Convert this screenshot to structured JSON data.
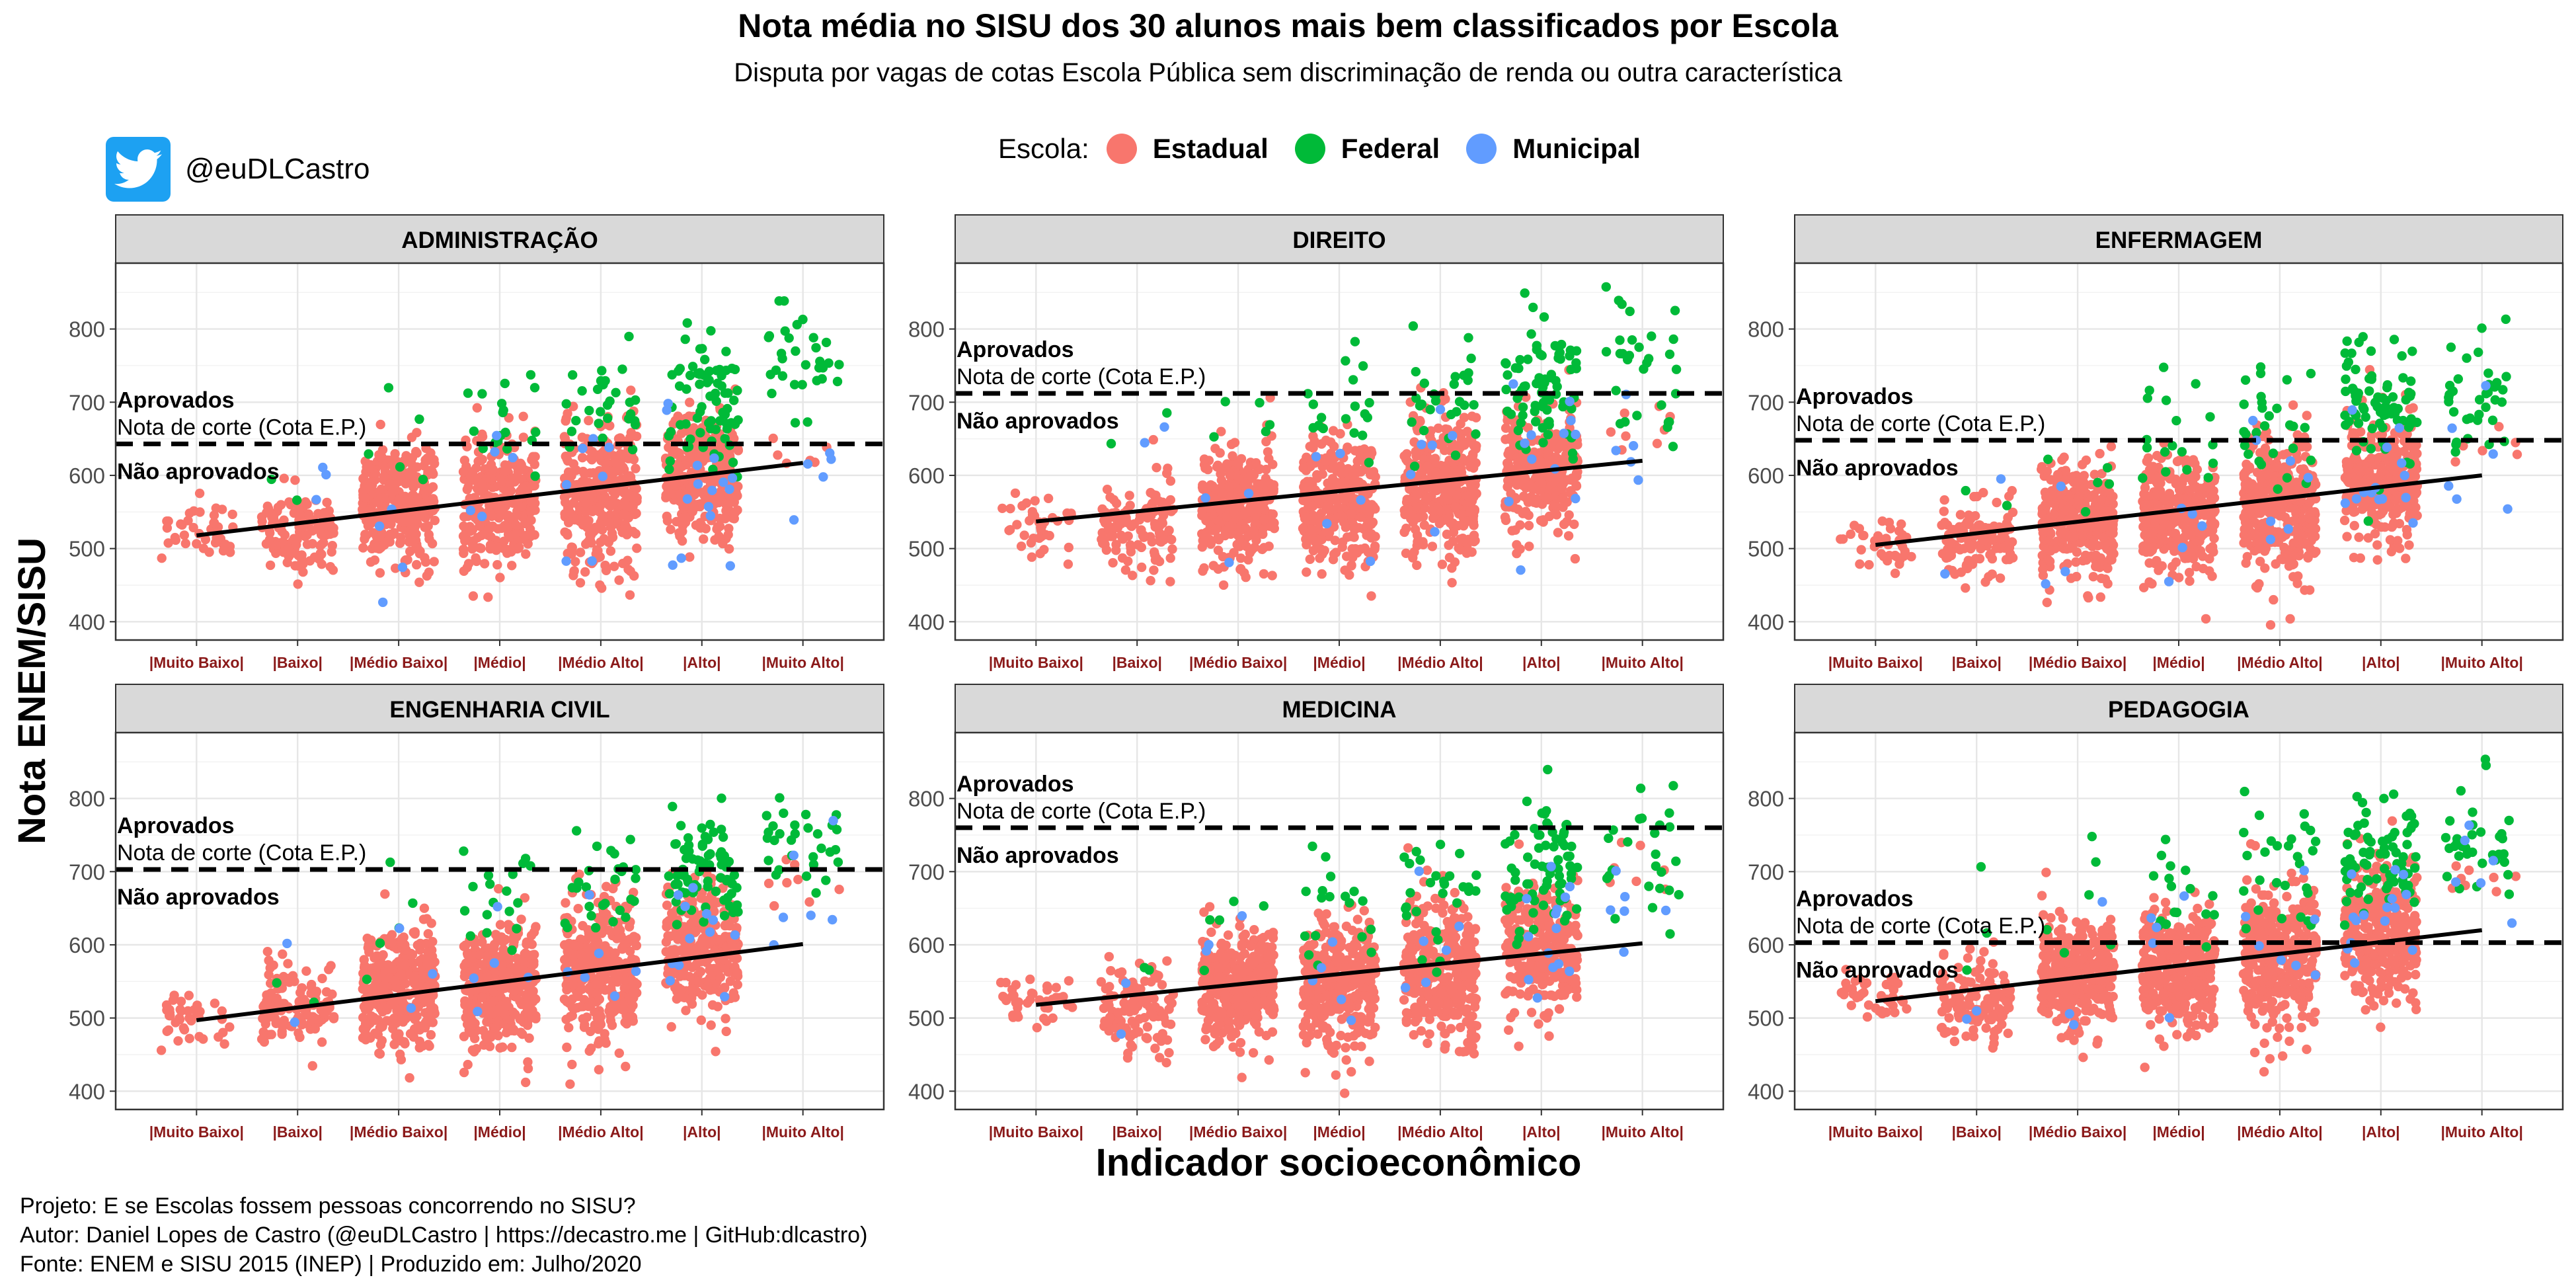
{
  "chart_data": {
    "type": "scatter",
    "title": "Nota média no SISU dos 30 alunos mais bem classificados por Escola",
    "subtitle": "Disputa por vagas de cotas Escola Pública sem discriminação de renda ou outra característica",
    "xlabel": "Indicador socioeconômico",
    "ylabel": "Nota ENEM/SISU",
    "categories": [
      "|Muito Baixo|",
      "|Baixo|",
      "|Médio Baixo|",
      "|Médio|",
      "|Médio Alto|",
      "|Alto|",
      "|Muito Alto|"
    ],
    "yticks": [
      400,
      500,
      600,
      700,
      800
    ],
    "ylim": [
      375,
      890
    ],
    "grid": true,
    "legend": {
      "title": "Escola:",
      "position": "top",
      "entries": [
        {
          "name": "Estadual",
          "color": "#F8766D"
        },
        {
          "name": "Federal",
          "color": "#00BA38"
        },
        {
          "name": "Municipal",
          "color": "#619CFF"
        }
      ]
    },
    "annotations": {
      "above": "Aprovados",
      "line": "Nota de corte (Cota E.P.)",
      "below": "Não aprovados"
    },
    "panels": [
      {
        "name": "ADMINISTRAÇÃO",
        "cutoff": 643,
        "trend": [
          518,
          617
        ],
        "estadual_center": [
          522,
          525,
          565,
          560,
          572,
          603,
          640
        ],
        "estadual_spread": [
          35,
          52,
          72,
          80,
          90,
          85,
          20
        ],
        "estadual_n": [
          40,
          120,
          330,
          330,
          350,
          300,
          6
        ],
        "federal_n": [
          0,
          2,
          5,
          18,
          28,
          75,
          32
        ],
        "federal_center": [
          0,
          580,
          660,
          680,
          700,
          700,
          750
        ],
        "municipal_n": [
          0,
          3,
          4,
          5,
          7,
          15,
          5
        ],
        "municipal_center": [
          0,
          520,
          540,
          560,
          580,
          590,
          640
        ]
      },
      {
        "name": "DIREITO",
        "cutoff": 712,
        "trend": [
          537,
          620
        ],
        "estadual_center": [
          525,
          530,
          555,
          562,
          585,
          610,
          660
        ],
        "estadual_spread": [
          40,
          55,
          72,
          78,
          88,
          75,
          30
        ],
        "estadual_n": [
          40,
          120,
          330,
          330,
          350,
          300,
          8
        ],
        "federal_n": [
          0,
          2,
          5,
          18,
          28,
          75,
          30
        ],
        "federal_center": [
          0,
          620,
          670,
          690,
          710,
          720,
          750
        ],
        "municipal_n": [
          0,
          2,
          3,
          5,
          6,
          12,
          5
        ],
        "municipal_center": [
          0,
          540,
          560,
          590,
          610,
          610,
          660
        ]
      },
      {
        "name": "ENFERMAGEM",
        "cutoff": 648,
        "trend": [
          505,
          600
        ],
        "estadual_center": [
          505,
          515,
          540,
          545,
          560,
          595,
          650
        ],
        "estadual_spread": [
          35,
          50,
          68,
          75,
          85,
          80,
          25
        ],
        "estadual_n": [
          40,
          120,
          330,
          330,
          350,
          300,
          6
        ],
        "federal_n": [
          0,
          2,
          5,
          18,
          28,
          75,
          35
        ],
        "federal_center": [
          0,
          600,
          630,
          660,
          680,
          700,
          720
        ],
        "municipal_n": [
          0,
          2,
          3,
          5,
          7,
          14,
          6
        ],
        "municipal_center": [
          0,
          510,
          530,
          560,
          580,
          590,
          640
        ]
      },
      {
        "name": "ENGENHARIA CIVIL",
        "cutoff": 703,
        "trend": [
          497,
          601
        ],
        "estadual_center": [
          495,
          515,
          540,
          545,
          565,
          595,
          680
        ],
        "estadual_spread": [
          35,
          50,
          72,
          78,
          88,
          80,
          35
        ],
        "estadual_n": [
          40,
          120,
          330,
          330,
          350,
          300,
          8
        ],
        "federal_n": [
          0,
          2,
          5,
          18,
          28,
          75,
          30
        ],
        "federal_center": [
          0,
          590,
          640,
          660,
          680,
          700,
          730
        ],
        "municipal_n": [
          0,
          2,
          3,
          5,
          6,
          12,
          6
        ],
        "municipal_center": [
          0,
          520,
          540,
          570,
          590,
          600,
          650
        ]
      },
      {
        "name": "MEDICINA",
        "cutoff": 760,
        "trend": [
          518,
          602
        ],
        "estadual_center": [
          520,
          515,
          540,
          548,
          565,
          600,
          700
        ],
        "estadual_spread": [
          40,
          52,
          72,
          80,
          88,
          82,
          40
        ],
        "estadual_n": [
          40,
          120,
          330,
          330,
          350,
          300,
          8
        ],
        "federal_n": [
          0,
          2,
          5,
          18,
          28,
          75,
          25
        ],
        "federal_center": [
          0,
          590,
          640,
          660,
          680,
          700,
          720
        ],
        "municipal_n": [
          0,
          2,
          3,
          5,
          6,
          14,
          6
        ],
        "municipal_center": [
          0,
          520,
          550,
          580,
          610,
          620,
          640
        ]
      },
      {
        "name": "PEDAGOGIA",
        "cutoff": 603,
        "trend": [
          523,
          620
        ],
        "estadual_center": [
          525,
          530,
          560,
          565,
          585,
          615,
          690
        ],
        "estadual_spread": [
          35,
          52,
          72,
          78,
          88,
          82,
          30
        ],
        "estadual_n": [
          40,
          120,
          330,
          330,
          350,
          300,
          8
        ],
        "federal_n": [
          0,
          3,
          6,
          18,
          28,
          75,
          35
        ],
        "federal_center": [
          0,
          600,
          650,
          680,
          700,
          720,
          740
        ],
        "municipal_n": [
          0,
          2,
          3,
          5,
          7,
          15,
          6
        ],
        "municipal_center": [
          0,
          530,
          560,
          590,
          620,
          640,
          680
        ]
      }
    ]
  },
  "twitter": {
    "handle": "@euDLCastro",
    "icon": "twitter-bird-icon"
  },
  "caption": {
    "line1": "Projeto: E se Escolas fossem pessoas concorrendo no SISU?",
    "line2": "Autor: Daniel Lopes de Castro (@euDLCastro | https://decastro.me | GitHub:dlcastro)",
    "line3": "Fonte: ENEM e SISU 2015 (INEP) | Produzido em: Julho/2020"
  }
}
